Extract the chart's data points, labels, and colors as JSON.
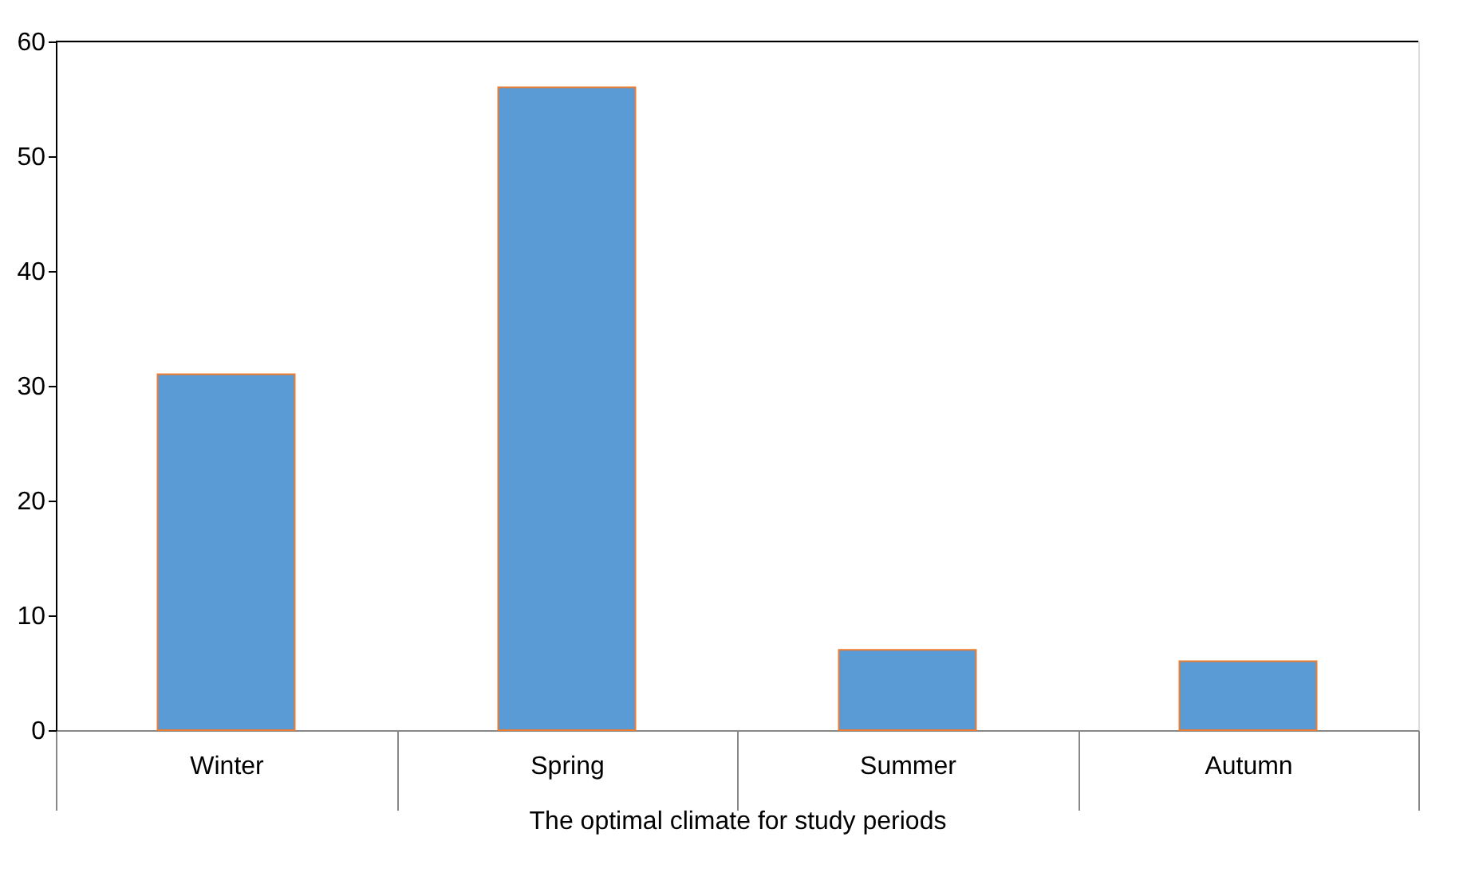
{
  "chart_data": {
    "type": "bar",
    "xlabel": "The optimal climate for study periods",
    "categories": [
      "Winter",
      "Spring",
      "Summer",
      "Autumn"
    ],
    "values": [
      31,
      56,
      7,
      6
    ],
    "color": "#5b9bd5",
    "ylim": [
      0,
      60
    ],
    "yticks": [
      0,
      10,
      20,
      30,
      40,
      50,
      60
    ],
    "grid": false
  }
}
